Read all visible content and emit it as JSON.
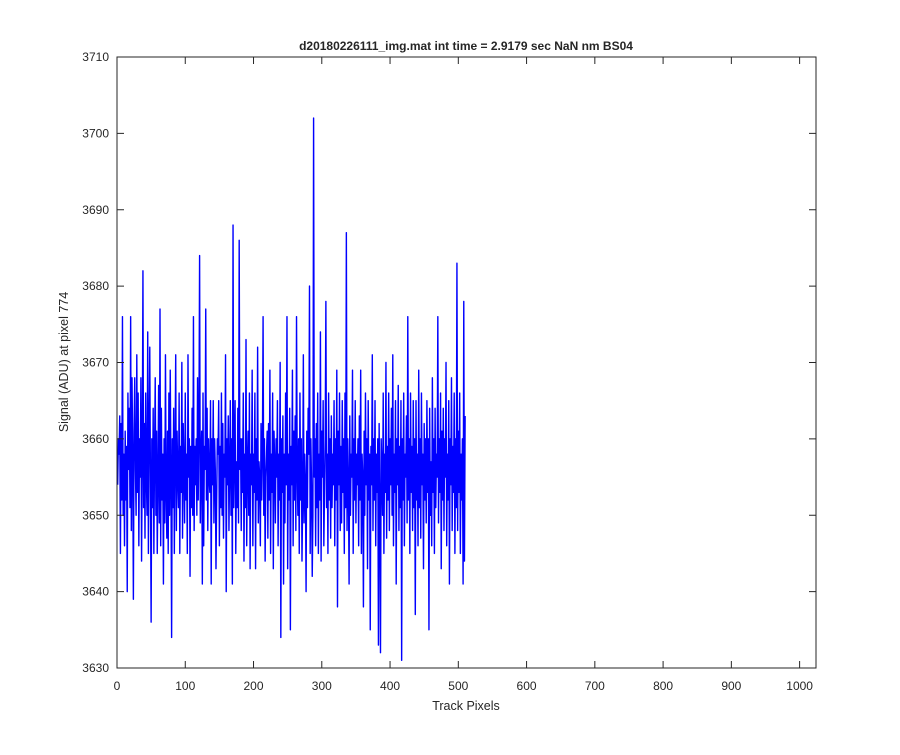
{
  "chart_data": {
    "type": "line",
    "title": "d20180226111_img.mat int time = 2.9179 sec  NaN nm BS04",
    "xlabel": "Track Pixels",
    "ylabel": "Signal (ADU) at pixel 774",
    "xlim": [
      0,
      1024
    ],
    "ylim": [
      3630,
      3710
    ],
    "xticks": [
      0,
      100,
      200,
      300,
      400,
      500,
      600,
      700,
      800,
      900,
      1000
    ],
    "yticks": [
      3630,
      3640,
      3650,
      3660,
      3670,
      3680,
      3690,
      3700,
      3710
    ],
    "grid": false,
    "line_color": "#0000ff",
    "series": [
      {
        "x_start": 1,
        "x_step": 1,
        "description_stats": {
          "mean": 3656,
          "noise_sd": 6
        },
        "values": [
          3654,
          3660,
          3658,
          3663,
          3645,
          3662,
          3652,
          3676,
          3650,
          3658,
          3646,
          3661,
          3652,
          3659,
          3640,
          3666,
          3656,
          3664,
          3651,
          3676,
          3648,
          3668,
          3658,
          3639,
          3661,
          3668,
          3656,
          3650,
          3671,
          3653,
          3666,
          3646,
          3660,
          3655,
          3668,
          3644,
          3658,
          3682,
          3651,
          3662,
          3647,
          3666,
          3655,
          3650,
          3674,
          3645,
          3660,
          3672,
          3654,
          3636,
          3660,
          3651,
          3664,
          3645,
          3658,
          3668,
          3650,
          3661,
          3645,
          3655,
          3667,
          3649,
          3677,
          3646,
          3664,
          3652,
          3658,
          3641,
          3660,
          3649,
          3671,
          3653,
          3647,
          3661,
          3645,
          3666,
          3650,
          3669,
          3656,
          3634,
          3660,
          3651,
          3664,
          3645,
          3658,
          3671,
          3648,
          3661,
          3655,
          3651,
          3666,
          3645,
          3659,
          3653,
          3670,
          3647,
          3662,
          3656,
          3649,
          3666,
          3652,
          3658,
          3645,
          3671,
          3655,
          3660,
          3642,
          3659,
          3651,
          3664,
          3650,
          3676,
          3648,
          3659,
          3654,
          3660,
          3650,
          3668,
          3652,
          3661,
          3684,
          3649,
          3657,
          3661,
          3641,
          3666,
          3646,
          3659,
          3656,
          3677,
          3652,
          3664,
          3648,
          3660,
          3655,
          3653,
          3665,
          3641,
          3660,
          3654,
          3665,
          3649,
          3660,
          3656,
          3643,
          3652,
          3660,
          3658,
          3665,
          3646,
          3659,
          3651,
          3666,
          3650,
          3662,
          3647,
          3658,
          3655,
          3671,
          3640,
          3660,
          3654,
          3663,
          3648,
          3656,
          3665,
          3650,
          3660,
          3641,
          3688,
          3651,
          3658,
          3665,
          3645,
          3657,
          3651,
          3664,
          3649,
          3686,
          3656,
          3660,
          3648,
          3660,
          3653,
          3666,
          3644,
          3658,
          3651,
          3673,
          3646,
          3656,
          3661,
          3650,
          3666,
          3643,
          3658,
          3654,
          3669,
          3646,
          3658,
          3653,
          3666,
          3643,
          3660,
          3652,
          3672,
          3649,
          3657,
          3655,
          3646,
          3662,
          3652,
          3658,
          3676,
          3650,
          3660,
          3644,
          3655,
          3658,
          3661,
          3647,
          3662,
          3652,
          3669,
          3645,
          3658,
          3653,
          3666,
          3643,
          3661,
          3657,
          3649,
          3660,
          3655,
          3665,
          3646,
          3658,
          3652,
          3670,
          3634,
          3660,
          3653,
          3663,
          3641,
          3658,
          3649,
          3666,
          3654,
          3676,
          3643,
          3658,
          3652,
          3664,
          3635,
          3659,
          3654,
          3669,
          3646,
          3661,
          3652,
          3663,
          3648,
          3676,
          3656,
          3650,
          3660,
          3645,
          3666,
          3652,
          3660,
          3644,
          3652,
          3671,
          3649,
          3658,
          3654,
          3640,
          3661,
          3651,
          3664,
          3658,
          3680,
          3645,
          3660,
          3654,
          3642,
          3650,
          3702,
          3655,
          3660,
          3646,
          3662,
          3651,
          3666,
          3645,
          3658,
          3652,
          3674,
          3644,
          3661,
          3655,
          3665,
          3646,
          3653,
          3660,
          3678,
          3651,
          3658,
          3645,
          3666,
          3652,
          3660,
          3647,
          3663,
          3651,
          3658,
          3654,
          3665,
          3646,
          3660,
          3652,
          3669,
          3638,
          3661,
          3654,
          3666,
          3648,
          3659,
          3649,
          3665,
          3653,
          3660,
          3645,
          3666,
          3651,
          3687,
          3648,
          3660,
          3654,
          3641,
          3663,
          3650,
          3658,
          3655,
          3669,
          3645,
          3660,
          3652,
          3665,
          3649,
          3658,
          3654,
          3660,
          3646,
          3663,
          3652,
          3669,
          3645,
          3658,
          3655,
          3638,
          3661,
          3650,
          3666,
          3654,
          3660,
          3643,
          3665,
          3652,
          3658,
          3635,
          3659,
          3654,
          3671,
          3648,
          3660,
          3652,
          3665,
          3646,
          3658,
          3653,
          3660,
          3633,
          3662,
          3651,
          3632,
          3660,
          3656,
          3650,
          3666,
          3645,
          3658,
          3653,
          3670,
          3647,
          3659,
          3652,
          3666,
          3648,
          3660,
          3654,
          3664,
          3650,
          3671,
          3646,
          3658,
          3653,
          3665,
          3641,
          3660,
          3654,
          3667,
          3648,
          3659,
          3651,
          3665,
          3631,
          3660,
          3652,
          3666,
          3646,
          3658,
          3655,
          3663,
          3649,
          3676,
          3652,
          3660,
          3645,
          3666,
          3653,
          3659,
          3648,
          3665,
          3651,
          3660,
          3637,
          3665,
          3652,
          3658,
          3646,
          3669,
          3651,
          3660,
          3647,
          3666,
          3654,
          3658,
          3643,
          3662,
          3652,
          3660,
          3649,
          3665,
          3653,
          3660,
          3635,
          3664,
          3650,
          3657,
          3646,
          3668,
          3653,
          3660,
          3645,
          3664,
          3651,
          3658,
          3655,
          3676,
          3649,
          3660,
          3653,
          3666,
          3643,
          3661,
          3652,
          3664,
          3648,
          3660,
          3655,
          3670,
          3646,
          3658,
          3652,
          3665,
          3641,
          3660,
          3654,
          3668,
          3648,
          3659,
          3653,
          3666,
          3645,
          3660,
          3651,
          3683,
          3648,
          3661,
          3653,
          3666,
          3645,
          3658,
          3652,
          3660,
          3641,
          3678,
          3644,
          3663
        ]
      }
    ]
  }
}
